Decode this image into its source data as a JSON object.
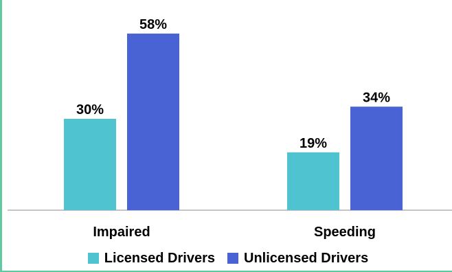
{
  "chart_data": {
    "type": "bar",
    "categories": [
      "Impaired",
      "Speeding"
    ],
    "series": [
      {
        "name": "Licensed Drivers",
        "values": [
          30,
          19
        ],
        "labels": [
          "30%",
          "19%"
        ],
        "color": "#4fc3cf"
      },
      {
        "name": "Unlicensed Drivers",
        "values": [
          58,
          34
        ],
        "labels": [
          "58%",
          "34%"
        ],
        "color": "#4a63d4"
      }
    ],
    "title": "",
    "xlabel": "",
    "ylabel": "",
    "ylim": [
      0,
      60
    ],
    "unit": "%",
    "grid": false,
    "legend_position": "bottom"
  },
  "colors": {
    "frame_accent": "#5fc9a0",
    "axis": "#888888"
  }
}
